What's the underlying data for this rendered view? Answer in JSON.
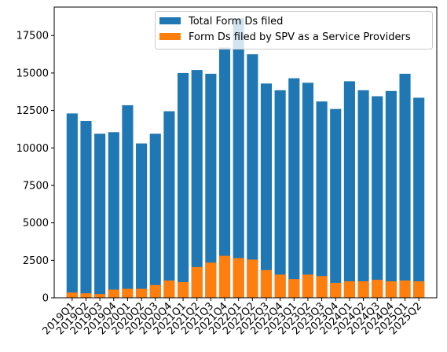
{
  "chart_data": {
    "type": "bar",
    "title": "",
    "xlabel": "",
    "ylabel": "",
    "categories": [
      "2019Q1",
      "2019Q2",
      "2019Q3",
      "2019Q4",
      "2020Q1",
      "2020Q2",
      "2020Q3",
      "2020Q4",
      "2021Q1",
      "2021Q2",
      "2021Q3",
      "2021Q4",
      "2022Q1",
      "2022Q2",
      "2022Q3",
      "2022Q4",
      "2023Q1",
      "2023Q2",
      "2023Q3",
      "2023Q4",
      "2024Q1",
      "2024Q2",
      "2024Q3",
      "2024Q4",
      "2025Q1",
      "2025Q2"
    ],
    "ylim": [
      0,
      19400
    ],
    "yticks": [
      0,
      2500,
      5000,
      7500,
      10000,
      12500,
      15000,
      17500
    ],
    "legend_position": "top-right",
    "series": [
      {
        "name": "Total Form Ds filed",
        "color": "#1f77b4",
        "values": [
          12300,
          11800,
          10950,
          11050,
          12850,
          10300,
          10950,
          12450,
          15000,
          15200,
          14950,
          16700,
          18650,
          16250,
          14300,
          13850,
          14650,
          14350,
          13100,
          12600,
          14450,
          13850,
          13450,
          13800,
          14950,
          13350
        ]
      },
      {
        "name": "Form Ds filed by SPV as a Service Providers",
        "color": "#ff7f0e",
        "values": [
          350,
          300,
          250,
          550,
          600,
          600,
          850,
          1150,
          1050,
          2050,
          2350,
          2800,
          2650,
          2550,
          1850,
          1550,
          1250,
          1550,
          1450,
          1000,
          1100,
          1100,
          1200,
          1100,
          1150,
          1100
        ]
      }
    ]
  }
}
